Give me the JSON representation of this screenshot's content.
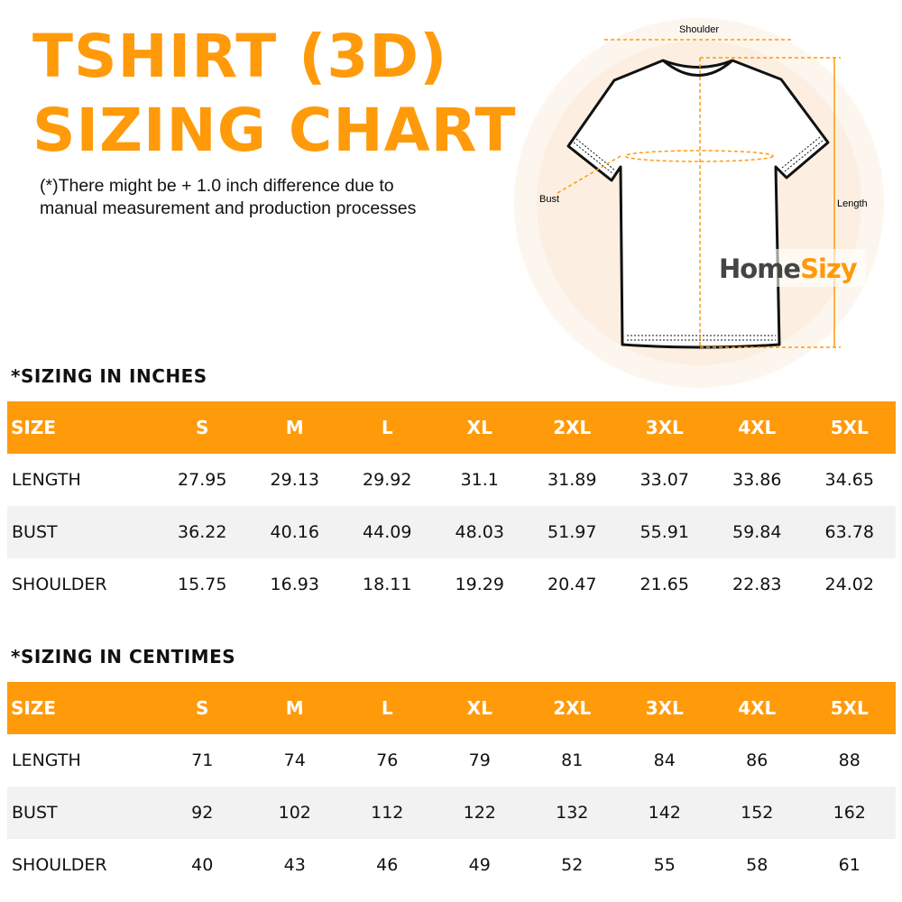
{
  "title_line1": "TSHIRT (3D)",
  "title_line2": "SIZING CHART",
  "note_line1": "(*)There might be + 1.0 inch difference due to",
  "note_line2": "manual measurement and production processes",
  "diagram": {
    "shoulder": "Shoulder",
    "bust": "Bust",
    "length": "Length",
    "brand_part1": "Home",
    "brand_part2": "Sizy"
  },
  "colors": {
    "accent": "#ff9a0a",
    "row_alt": "#f2f2f2",
    "brand_dark": "#444444"
  },
  "inches": {
    "title": "*SIZING IN INCHES",
    "headers": [
      "SIZE",
      "S",
      "M",
      "L",
      "XL",
      "2XL",
      "3XL",
      "4XL",
      "5XL"
    ],
    "rows": [
      [
        "LENGTH",
        "27.95",
        "29.13",
        "29.92",
        "31.1",
        "31.89",
        "33.07",
        "33.86",
        "34.65"
      ],
      [
        "BUST",
        "36.22",
        "40.16",
        "44.09",
        "48.03",
        "51.97",
        "55.91",
        "59.84",
        "63.78"
      ],
      [
        "SHOULDER",
        "15.75",
        "16.93",
        "18.11",
        "19.29",
        "20.47",
        "21.65",
        "22.83",
        "24.02"
      ]
    ]
  },
  "cm": {
    "title": "*SIZING IN CENTIMES",
    "headers": [
      "SIZE",
      "S",
      "M",
      "L",
      "XL",
      "2XL",
      "3XL",
      "4XL",
      "5XL"
    ],
    "rows": [
      [
        "LENGTH",
        "71",
        "74",
        "76",
        "79",
        "81",
        "84",
        "86",
        "88"
      ],
      [
        "BUST",
        "92",
        "102",
        "112",
        "122",
        "132",
        "142",
        "152",
        "162"
      ],
      [
        "SHOULDER",
        "40",
        "43",
        "46",
        "49",
        "52",
        "55",
        "58",
        "61"
      ]
    ]
  }
}
